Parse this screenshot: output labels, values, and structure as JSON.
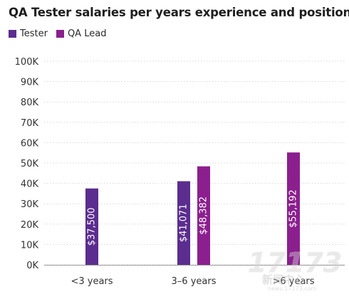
{
  "chart_data": {
    "type": "bar",
    "title": "QA Tester salaries per years experience and position",
    "categories": [
      "<3 years",
      "3–6 years",
      ">6 years"
    ],
    "series": [
      {
        "name": "Tester",
        "color": "#5b2d8e",
        "values": [
          37500,
          41071,
          null
        ],
        "labels": [
          "$37,500",
          "$41,071",
          null
        ]
      },
      {
        "name": "QA Lead",
        "color": "#8b1f8e",
        "values": [
          null,
          48382,
          55192
        ],
        "labels": [
          null,
          "$48,382",
          "$55,192"
        ]
      }
    ],
    "y_ticks": [
      "0K",
      "10K",
      "20K",
      "30K",
      "40K",
      "50K",
      "60K",
      "70K",
      "80K",
      "90K",
      "100K"
    ],
    "ylim": [
      0,
      100000
    ],
    "grid": true,
    "legend_position": "top-left"
  },
  "watermark": {
    "number": "17173",
    "cn_text": "新闻中心",
    "url": "news.17173.com"
  }
}
